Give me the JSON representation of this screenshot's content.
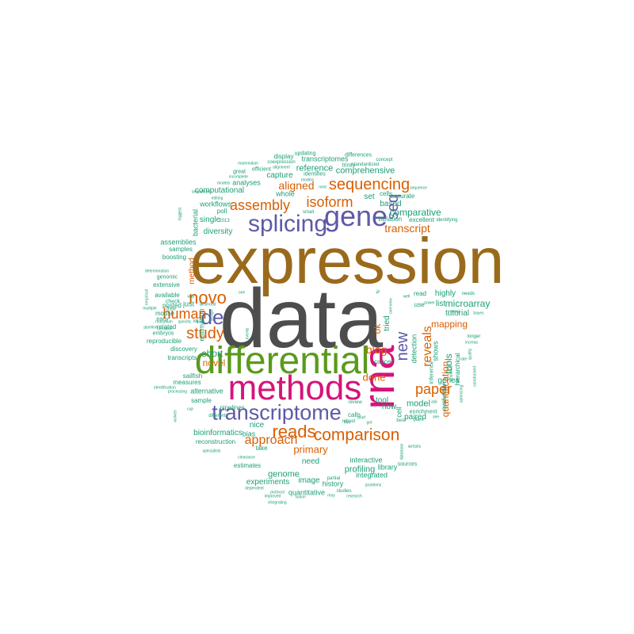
{
  "colors": {
    "background": "#ffffff",
    "c1": "#9a6a1c",
    "c2": "#4d4d4d",
    "c3": "#5a9a1c",
    "c4": "#d4147a",
    "c5": "#5e5aa6",
    "c6": "#d95f02",
    "c7": "#1b9e77"
  },
  "words": [
    "expression",
    "data",
    "differential",
    "methods",
    "rna",
    "gene",
    "splicing",
    "transcriptome",
    "comparison",
    "reads",
    "sequencing",
    "assembly",
    "isoform",
    "de",
    "novo",
    "human",
    "seq",
    "study",
    "new",
    "paper",
    "reveals",
    "transcript",
    "approach",
    "blog",
    "aligned",
    "quantification",
    "mapping",
    "microarray",
    "primary",
    "done",
    "novel",
    "comparative",
    "tools",
    "tutorial",
    "highly",
    "ok",
    "tried",
    "short",
    "model",
    "genome",
    "profiling",
    "integrated",
    "nice",
    "reference",
    "comprehensive",
    "computational",
    "single",
    "diversity",
    "method",
    "bioinformatics",
    "alternative",
    "estimation",
    "experiments",
    "image",
    "quantitative",
    "history",
    "interactive",
    "need",
    "based",
    "set",
    "detection",
    "cell",
    "paired",
    "list",
    "evaluation",
    "genes",
    "library",
    "tool",
    "read",
    "capture",
    "whole",
    "analyses",
    "workflows",
    "poll",
    "2013",
    "bacterial",
    "assemblies",
    "samples",
    "boosting",
    "genomic",
    "extensive",
    "available",
    "posted",
    "check",
    "just",
    "free",
    "mouse",
    "early",
    "related",
    "embryos",
    "reproducible",
    "discovery",
    "transcripts",
    "measures",
    "sailfish",
    "sample",
    "reconstruction",
    "pipelines",
    "different",
    "bias",
    "take",
    "estimates",
    "calls",
    "cancer",
    "now",
    "shows",
    "enrichment",
    "hierarchical",
    "inference",
    "display",
    "updating",
    "differences",
    "transcriptomes",
    "trinity",
    "standardized",
    "concept",
    "coexpression",
    "mammalian",
    "efficient",
    "alignment",
    "great",
    "incomplete",
    "modeis",
    "models",
    "sequences",
    "editing",
    "small",
    "next",
    "cells",
    "accurate",
    "sequence",
    "excellent",
    "identifying",
    "variation",
    "biggest",
    "determination",
    "empirical",
    "multiple",
    "pipeline",
    "sensitive",
    "maximum",
    "specific",
    "identification",
    "processing",
    "cup",
    "wolves",
    "specialists",
    "clearance",
    "dependent",
    "improved",
    "integrating",
    "protocol",
    "fusion",
    "studies",
    "partial",
    "may",
    "research",
    "robust",
    "brief",
    "problems",
    "sources",
    "database",
    "errors",
    "best",
    "plant",
    "review",
    "find",
    "got",
    "ask",
    "see",
    "likelihood",
    "design",
    "tpm",
    "one",
    "way",
    "events",
    "fly",
    "overview",
    "use",
    "power",
    "reveal",
    "needs",
    "bayes",
    "longer",
    "increas",
    "quality",
    "optimizing",
    "constrained",
    "graphical",
    "rate",
    "well",
    "identifies",
    "kit"
  ]
}
